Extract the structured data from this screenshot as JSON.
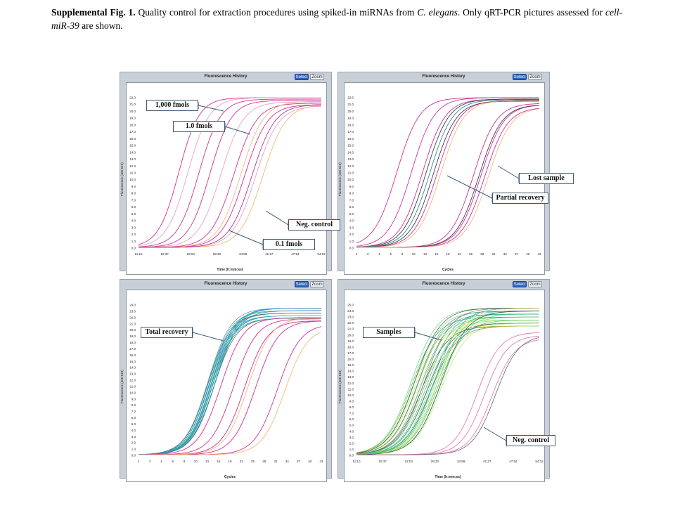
{
  "caption": {
    "fig": "Supplemental Fig. 1.",
    "text1": " Quality control for extraction procedures using spiked-in miRNAs from ",
    "species": "C. elegans",
    "text2": ". Only qRT-PCR pictures assessed for ",
    "gene": "cell-miR-39",
    "text3": " are shown."
  },
  "panel_common": {
    "title": "Fluorescence History",
    "select_label": "Select",
    "zoom_label": "Zoom",
    "ylabel": "Fluorescence (465-510)"
  },
  "panels": [
    {
      "xlabel": "Time (h:mm:ss)",
      "yticks": [
        "0.0",
        "1.0",
        "2.0",
        "3.0",
        "4.0",
        "5.0",
        "6.0",
        "7.0",
        "8.0",
        "9.0",
        "10.0",
        "11.0",
        "12.0",
        "13.0",
        "14.0",
        "15.0",
        "16.0",
        "17.0",
        "18.0",
        "19.0",
        "20.0",
        "21.0",
        "22.0"
      ],
      "xticks": [
        "11:10",
        "15:37",
        "22:04",
        "28:32",
        "34:59",
        "41:27",
        "47:54",
        "54:22"
      ],
      "labels": [
        "1,000 fmols",
        "1.0 fmols",
        "Neg. control",
        "0.1 fmols"
      ]
    },
    {
      "xlabel": "Cycles",
      "yticks": [
        "0.0",
        "1.0",
        "2.0",
        "3.0",
        "4.0",
        "5.0",
        "6.0",
        "7.0",
        "8.0",
        "9.0",
        "10.0",
        "11.0",
        "12.0",
        "13.0",
        "14.0",
        "15.0",
        "16.0",
        "17.0",
        "18.0",
        "19.0",
        "20.0",
        "21.0",
        "22.0"
      ],
      "xticks": [
        "1",
        "2",
        "4",
        "6",
        "8",
        "10",
        "13",
        "16",
        "19",
        "22",
        "25",
        "28",
        "31",
        "34",
        "37",
        "40",
        "43"
      ],
      "labels": [
        "Lost sample",
        "Partial recovery"
      ]
    },
    {
      "xlabel": "Cycles",
      "yticks": [
        "0.0",
        "1.0",
        "2.0",
        "3.0",
        "4.0",
        "5.0",
        "6.0",
        "7.0",
        "8.0",
        "9.0",
        "10.0",
        "11.0",
        "12.0",
        "13.0",
        "14.0",
        "15.0",
        "16.0",
        "17.0",
        "18.0",
        "19.0",
        "20.0",
        "21.0",
        "22.0",
        "23.0",
        "24.0"
      ],
      "xticks": [
        "1",
        "2",
        "4",
        "6",
        "8",
        "10",
        "13",
        "16",
        "19",
        "22",
        "25",
        "28",
        "31",
        "34",
        "37",
        "40",
        "43"
      ],
      "labels": [
        "Total recovery"
      ]
    },
    {
      "xlabel": "Time (h:mm:ss)",
      "yticks": [
        "0.0",
        "1.0",
        "2.0",
        "3.0",
        "4.0",
        "5.0",
        "6.0",
        "7.0",
        "8.0",
        "9.0",
        "10.0",
        "11.0",
        "12.0",
        "13.0",
        "14.0",
        "15.0",
        "16.0",
        "17.0",
        "18.0",
        "19.0",
        "20.0",
        "21.0",
        "22.0",
        "23.0",
        "24.0",
        "25.0"
      ],
      "xticks": [
        "11:10",
        "15:37",
        "22:04",
        "28:32",
        "34:59",
        "41:27",
        "47:54",
        "54:22"
      ],
      "labels": [
        "Samples",
        "Neg. control"
      ]
    }
  ]
}
